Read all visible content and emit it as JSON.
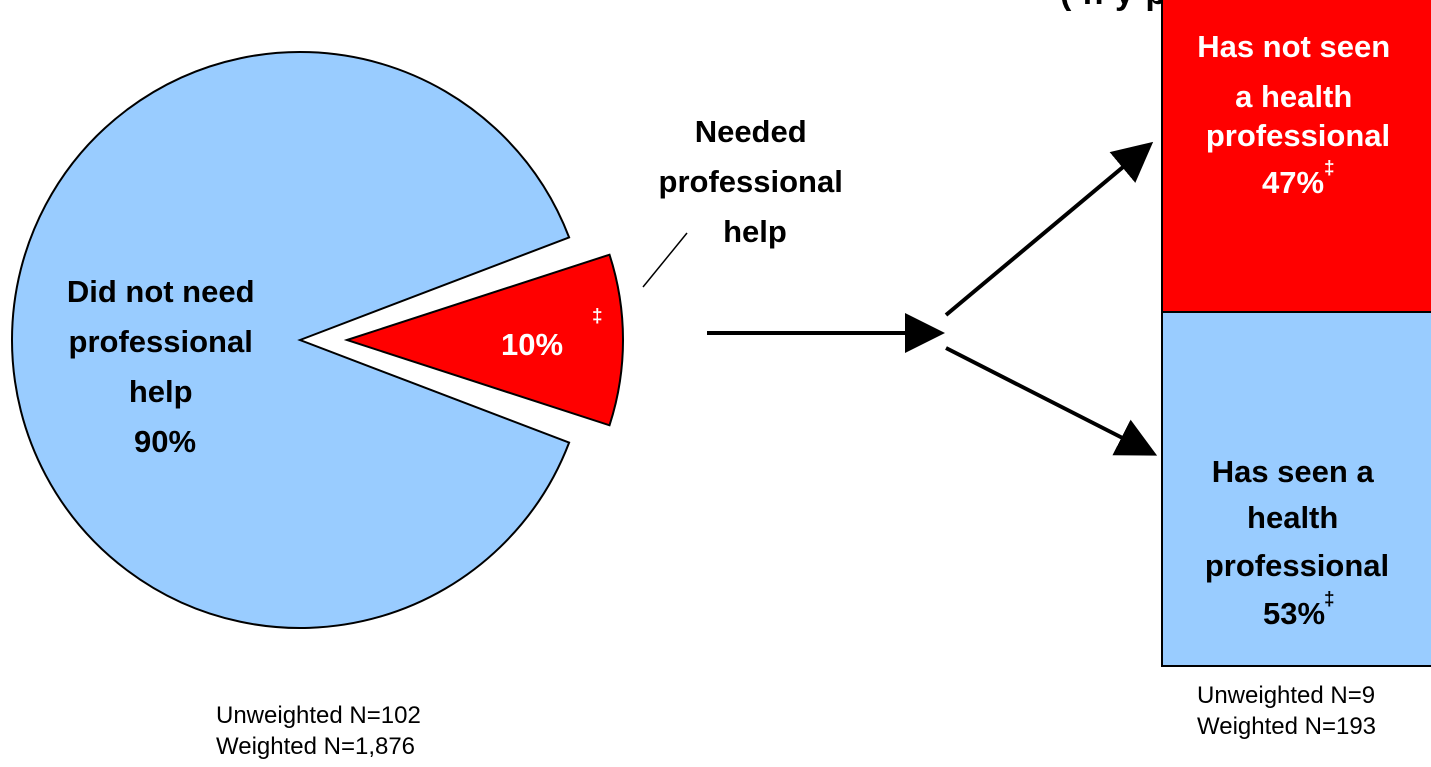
{
  "colors": {
    "pie_main": "#99ccff",
    "pie_slice": "#ff0000",
    "bar_top": "#ff0000",
    "bar_bottom": "#99ccff",
    "outline": "#000000"
  },
  "top_partial_text": "(  n       y     p    )",
  "chart_data": [
    {
      "type": "pie",
      "slices": [
        {
          "label": "Did not need professional help",
          "value": 90,
          "display": "90%"
        },
        {
          "label": "Needed professional help",
          "value": 10,
          "display": "10%",
          "marker": "‡",
          "exploded": true
        }
      ],
      "labels": {
        "main_lines": [
          "Did not need",
          "professional",
          "help",
          "90%"
        ],
        "slice_value": "10%",
        "slice_marker": "‡",
        "callout_lines": [
          "Needed",
          "professional",
          "help"
        ]
      },
      "footnote": [
        "Unweighted N=102",
        "Weighted N=1,876"
      ]
    },
    {
      "type": "bar",
      "stacked": true,
      "segments": [
        {
          "label": "Has not seen a health professional",
          "value": 47,
          "display": "47%",
          "marker": "‡",
          "lines": [
            "Has not seen",
            "a health",
            "professional"
          ]
        },
        {
          "label": "Has seen a health professional",
          "value": 53,
          "display": "53%",
          "marker": "‡",
          "lines": [
            "Has seen a",
            "health",
            "professional"
          ]
        }
      ],
      "footnote": [
        "Unweighted N=9",
        "Weighted N=193"
      ]
    }
  ]
}
